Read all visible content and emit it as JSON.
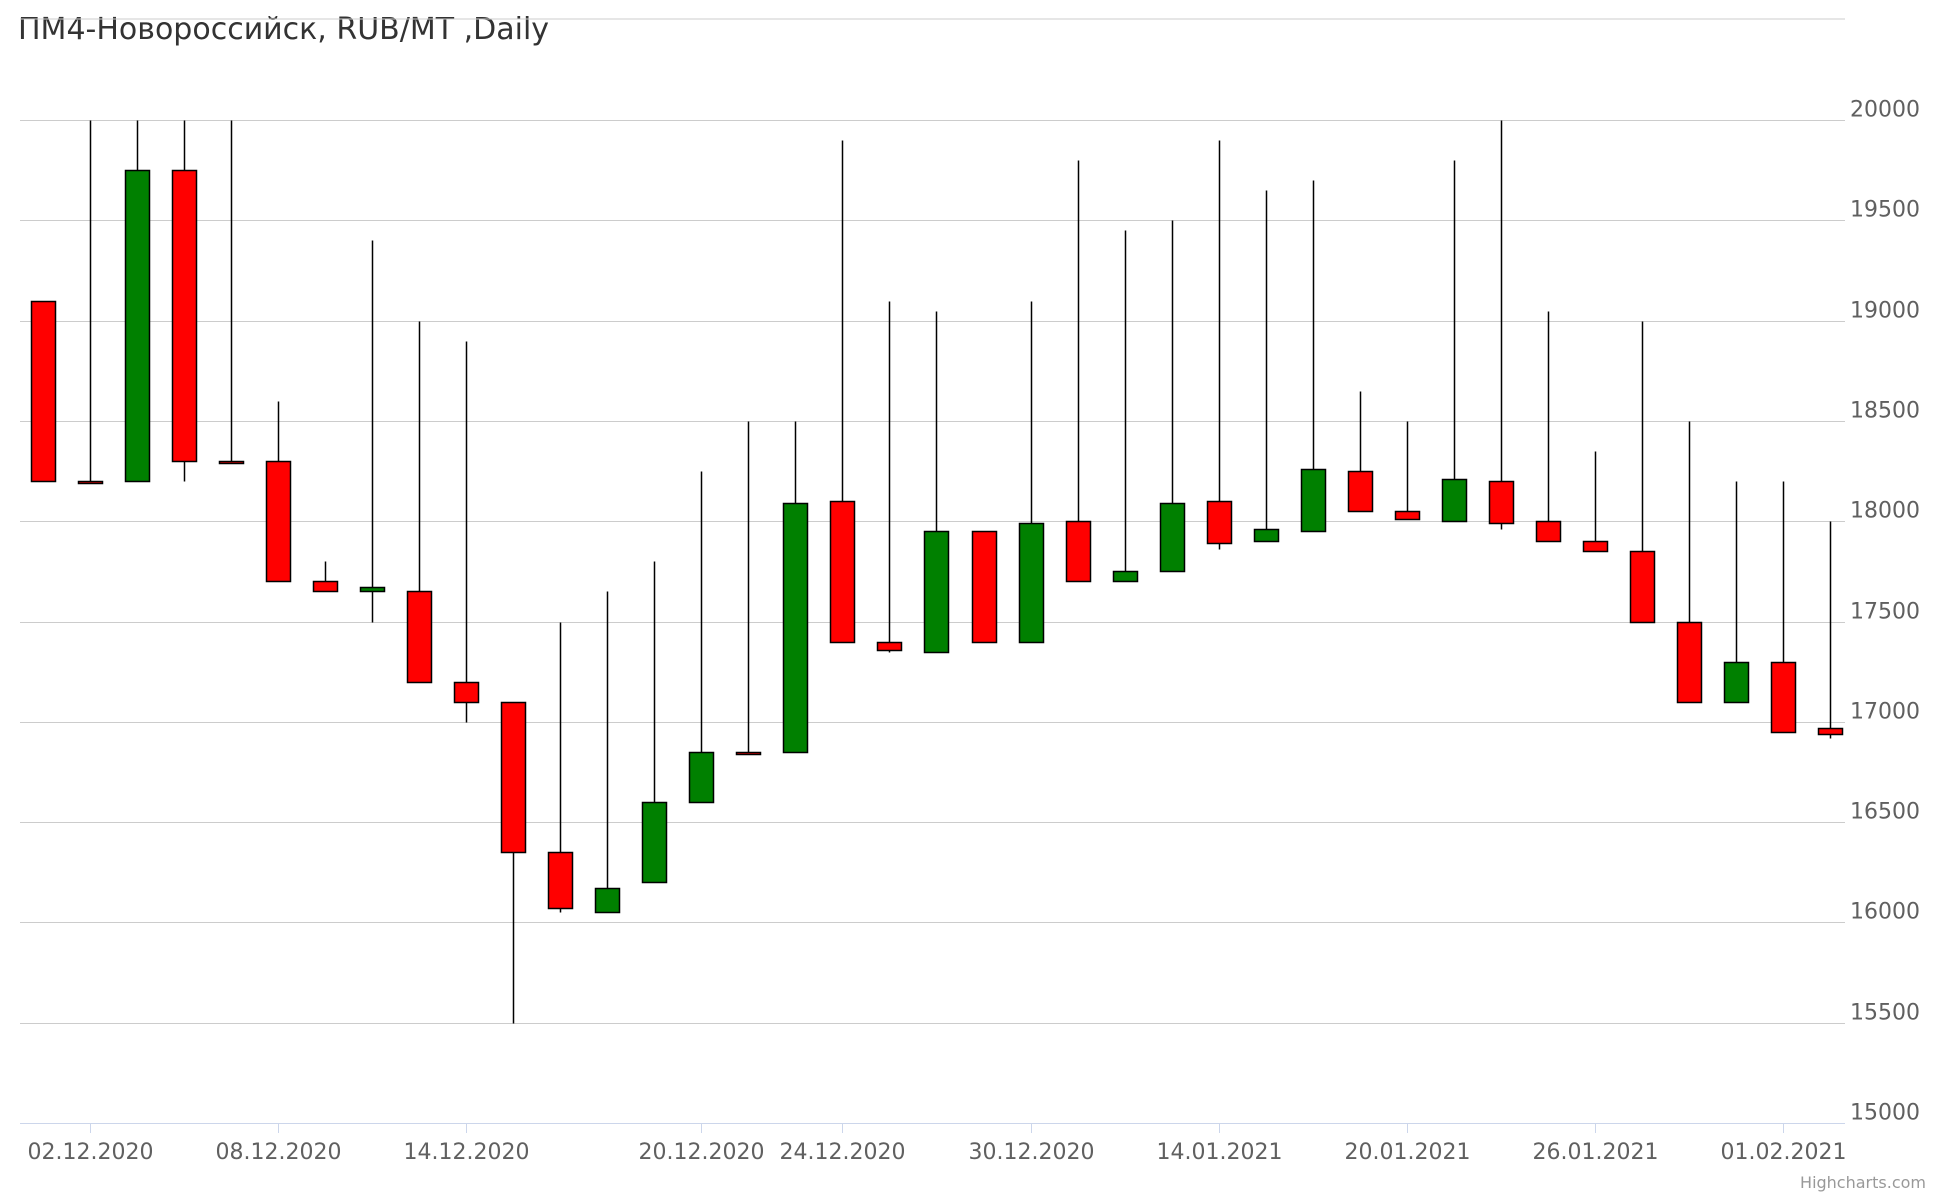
{
  "chart_data": {
    "type": "candlestick",
    "title": "ПМ4-Новороссийск, RUB/MT ,Daily",
    "ylim": [
      15000,
      20000
    ],
    "yticks": [
      15000,
      15500,
      16000,
      16500,
      17000,
      17500,
      18000,
      18500,
      19000,
      19500,
      20000
    ],
    "xtick_labels": [
      "02.12.2020",
      "08.12.2020",
      "14.12.2020",
      "20.12.2020",
      "24.12.2020",
      "30.12.2020",
      "14.01.2021",
      "20.01.2021",
      "26.01.2021",
      "01.02.2021"
    ],
    "xtick_index": [
      1,
      5,
      9,
      14,
      17,
      21,
      25,
      29,
      33,
      37
    ],
    "colors": {
      "up": "#008000",
      "down": "#ff0000",
      "grid": "#cccccc",
      "axis": "#ccd6eb",
      "wick": "#000000"
    },
    "candles": [
      {
        "open": 19100,
        "high": 19100,
        "low": 18200,
        "close": 18200
      },
      {
        "open": 18200,
        "high": 20000,
        "low": 18200,
        "close": 18200
      },
      {
        "open": 18200,
        "high": 20000,
        "low": 18200,
        "close": 19750
      },
      {
        "open": 19750,
        "high": 20000,
        "low": 18200,
        "close": 18300
      },
      {
        "open": 18300,
        "high": 20000,
        "low": 18300,
        "close": 18300
      },
      {
        "open": 18300,
        "high": 18600,
        "low": 17700,
        "close": 17700
      },
      {
        "open": 17700,
        "high": 17800,
        "low": 17650,
        "close": 17650
      },
      {
        "open": 17650,
        "high": 19400,
        "low": 17500,
        "close": 17670
      },
      {
        "open": 17650,
        "high": 19000,
        "low": 17200,
        "close": 17200
      },
      {
        "open": 17200,
        "high": 18900,
        "low": 17000,
        "close": 17100
      },
      {
        "open": 17100,
        "high": 17100,
        "low": 15500,
        "close": 16350
      },
      {
        "open": 16350,
        "high": 17500,
        "low": 16050,
        "close": 16070
      },
      {
        "open": 16050,
        "high": 17650,
        "low": 16050,
        "close": 16170
      },
      {
        "open": 16200,
        "high": 17800,
        "low": 16200,
        "close": 16600
      },
      {
        "open": 16600,
        "high": 18250,
        "low": 16600,
        "close": 16850
      },
      {
        "open": 16850,
        "high": 18500,
        "low": 16850,
        "close": 16850
      },
      {
        "open": 16850,
        "high": 18500,
        "low": 16850,
        "close": 18090
      },
      {
        "open": 18100,
        "high": 19900,
        "low": 17400,
        "close": 17400
      },
      {
        "open": 17400,
        "high": 19100,
        "low": 17350,
        "close": 17360
      },
      {
        "open": 17350,
        "high": 19050,
        "low": 17350,
        "close": 17950
      },
      {
        "open": 17950,
        "high": 17950,
        "low": 17400,
        "close": 17400
      },
      {
        "open": 17400,
        "high": 19100,
        "low": 17400,
        "close": 17990
      },
      {
        "open": 18000,
        "high": 19800,
        "low": 17700,
        "close": 17700
      },
      {
        "open": 17700,
        "high": 19450,
        "low": 17700,
        "close": 17750
      },
      {
        "open": 17750,
        "high": 19500,
        "low": 17750,
        "close": 18090
      },
      {
        "open": 18100,
        "high": 19900,
        "low": 17860,
        "close": 17890
      },
      {
        "open": 17900,
        "high": 19650,
        "low": 17900,
        "close": 17960
      },
      {
        "open": 17950,
        "high": 19700,
        "low": 17950,
        "close": 18260
      },
      {
        "open": 18250,
        "high": 18650,
        "low": 18050,
        "close": 18050
      },
      {
        "open": 18050,
        "high": 18500,
        "low": 18010,
        "close": 18010
      },
      {
        "open": 18000,
        "high": 19800,
        "low": 18000,
        "close": 18210
      },
      {
        "open": 18200,
        "high": 20000,
        "low": 17960,
        "close": 17990
      },
      {
        "open": 18000,
        "high": 19050,
        "low": 17900,
        "close": 17900
      },
      {
        "open": 17900,
        "high": 18350,
        "low": 17850,
        "close": 17850
      },
      {
        "open": 17850,
        "high": 19000,
        "low": 17500,
        "close": 17500
      },
      {
        "open": 17500,
        "high": 18500,
        "low": 17100,
        "close": 17100
      },
      {
        "open": 17100,
        "high": 18200,
        "low": 17100,
        "close": 17300
      },
      {
        "open": 17300,
        "high": 18200,
        "low": 16950,
        "close": 16950
      },
      {
        "open": 16970,
        "high": 18000,
        "low": 16920,
        "close": 16940
      }
    ],
    "credits": "Highcharts.com"
  }
}
